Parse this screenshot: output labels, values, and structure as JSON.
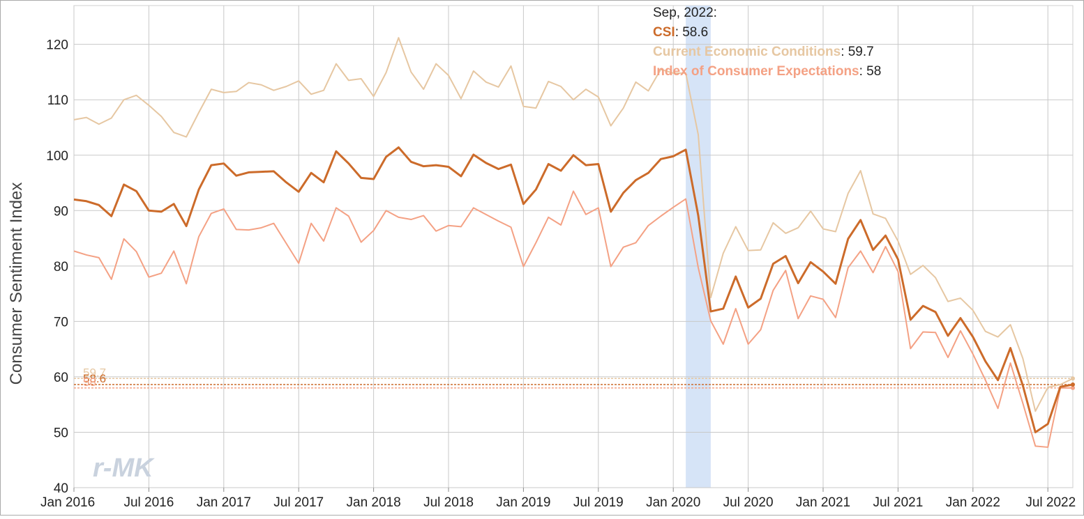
{
  "chart_data": {
    "type": "line",
    "ylabel": "Consumer Sentiment Index",
    "ylim": [
      40,
      127
    ],
    "yticks": [
      40,
      50,
      60,
      70,
      80,
      90,
      100,
      110,
      120
    ],
    "xtick_labels": [
      "Jan 2016",
      "Jul 2016",
      "Jan 2017",
      "Jul 2017",
      "Jan 2018",
      "Jul 2018",
      "Jan 2019",
      "Jul 2019",
      "Jan 2020",
      "Jul 2020",
      "Jan 2021",
      "Jul 2021",
      "Jan 2022",
      "Jul 2022"
    ],
    "x_start": "Jan 2016",
    "x_end": "Sep 2022",
    "recession_shading": {
      "from": "Feb 2020",
      "to": "Apr 2020",
      "color": "#d6e4f7"
    },
    "grid": true,
    "watermark": "r-MK",
    "series": [
      {
        "name": "CSI",
        "color": "#cc6b2a",
        "values": [
          92.0,
          91.7,
          91.0,
          89.0,
          94.7,
          93.5,
          90.0,
          89.8,
          91.2,
          87.2,
          93.8,
          98.2,
          98.5,
          96.3,
          96.9,
          97.0,
          97.1,
          95.1,
          93.4,
          96.8,
          95.1,
          100.7,
          98.5,
          95.9,
          95.7,
          99.7,
          101.4,
          98.8,
          98.0,
          98.2,
          97.9,
          96.2,
          100.1,
          98.6,
          97.5,
          98.3,
          91.2,
          93.8,
          98.4,
          97.2,
          100.0,
          98.2,
          98.4,
          89.8,
          93.2,
          95.5,
          96.8,
          99.3,
          99.8,
          101.0,
          89.1,
          71.8,
          72.3,
          78.1,
          72.5,
          74.1,
          80.4,
          81.8,
          76.9,
          80.7,
          79.0,
          76.8,
          84.9,
          88.3,
          82.9,
          85.5,
          81.2,
          70.3,
          72.8,
          71.7,
          67.4,
          70.6,
          67.2,
          62.8,
          59.4,
          65.2,
          58.4,
          50.0,
          51.5,
          58.2,
          58.6
        ]
      },
      {
        "name": "Current Economic Conditions",
        "color": "#e6c7a2",
        "values": [
          106.4,
          106.8,
          105.6,
          106.7,
          110.0,
          110.8,
          109.0,
          107.0,
          104.1,
          103.3,
          107.7,
          111.9,
          111.3,
          111.5,
          113.1,
          112.7,
          111.7,
          112.4,
          113.4,
          111.0,
          111.7,
          116.5,
          113.5,
          113.8,
          110.6,
          114.9,
          121.2,
          115.0,
          111.9,
          116.5,
          114.4,
          110.2,
          115.2,
          113.2,
          112.3,
          116.1,
          108.8,
          108.5,
          113.3,
          112.4,
          110.0,
          111.9,
          110.5,
          105.3,
          108.5,
          113.2,
          111.6,
          115.5,
          114.8,
          114.8,
          103.7,
          74.3,
          82.3,
          87.1,
          82.8,
          82.9,
          87.8,
          85.9,
          86.9,
          89.9,
          86.7,
          86.2,
          93.1,
          97.2,
          89.4,
          88.6,
          84.5,
          78.5,
          80.1,
          77.9,
          73.6,
          74.2,
          72.0,
          68.2,
          67.2,
          69.4,
          63.3,
          53.8,
          58.1,
          58.6,
          59.7
        ]
      },
      {
        "name": "Index of Consumer Expectations",
        "color": "#f4a184",
        "values": [
          82.7,
          82.0,
          81.5,
          77.6,
          84.9,
          82.6,
          78.0,
          78.7,
          82.7,
          76.8,
          85.3,
          89.5,
          90.3,
          86.6,
          86.5,
          86.9,
          87.7,
          84.1,
          80.5,
          87.7,
          84.5,
          90.5,
          89.0,
          84.3,
          86.4,
          90.0,
          88.8,
          88.4,
          89.1,
          86.3,
          87.3,
          87.1,
          90.5,
          89.3,
          88.1,
          87.0,
          79.9,
          84.2,
          88.8,
          87.4,
          93.5,
          89.3,
          90.5,
          79.9,
          83.4,
          84.2,
          87.3,
          89.0,
          90.6,
          92.1,
          79.7,
          70.1,
          65.9,
          72.3,
          65.9,
          68.5,
          75.6,
          79.2,
          70.5,
          74.6,
          74.0,
          70.7,
          79.7,
          82.7,
          78.8,
          83.5,
          79.0,
          65.1,
          68.1,
          68.0,
          63.5,
          68.3,
          64.1,
          59.4,
          54.3,
          62.5,
          55.2,
          47.5,
          47.3,
          58.0,
          58.0
        ]
      }
    ],
    "tooltip": {
      "date": "Sep, 2022:",
      "rows": [
        {
          "name": "CSI",
          "value": "58.6",
          "color": "#cc6b2a"
        },
        {
          "name": "Current Economic Conditions",
          "value": "59.7",
          "color": "#e6c7a2"
        },
        {
          "name": "Index of Consumer Expectations",
          "value": "58",
          "color": "#f4a184"
        }
      ]
    },
    "reference_lines": [
      {
        "value": 59.7,
        "label": "59.7",
        "color": "#e6c7a2"
      },
      {
        "value": 58.6,
        "label": "58.6",
        "color": "#cc6b2a"
      },
      {
        "value": 58.0,
        "label": "58",
        "color": "#f4a184"
      }
    ]
  }
}
